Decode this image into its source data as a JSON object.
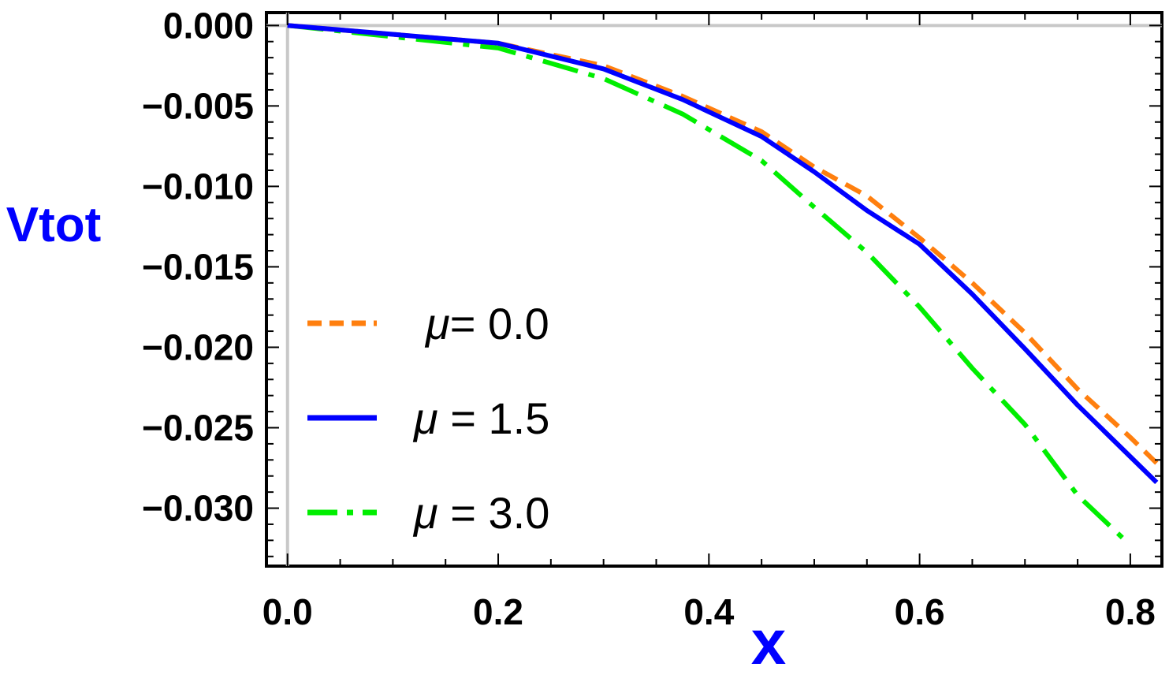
{
  "chart_data": {
    "type": "line",
    "title": "",
    "xlabel": "x",
    "ylabel": "Vtot",
    "xlim": [
      -0.02,
      0.83
    ],
    "ylim": [
      -0.0336,
      0.0008
    ],
    "grid": false,
    "legend_position": "bottom-left",
    "x_ticks": [
      {
        "value": 0.0,
        "label": "0.0"
      },
      {
        "value": 0.2,
        "label": "0.2"
      },
      {
        "value": 0.4,
        "label": "0.4"
      },
      {
        "value": 0.6,
        "label": "0.6"
      },
      {
        "value": 0.8,
        "label": "0.8"
      }
    ],
    "y_ticks": [
      {
        "value": 0.0,
        "label": "0.000"
      },
      {
        "value": -0.005,
        "label": "−0.005"
      },
      {
        "value": -0.01,
        "label": "−0.010"
      },
      {
        "value": -0.015,
        "label": "−0.015"
      },
      {
        "value": -0.02,
        "label": "−0.020"
      },
      {
        "value": -0.025,
        "label": "−0.025"
      },
      {
        "value": -0.03,
        "label": "−0.030"
      }
    ],
    "series": [
      {
        "name": "μ= 0.0",
        "legend_prefix": "μ",
        "legend_suffix": "= 0.0",
        "color": "#ff7f0e",
        "style": "dashed",
        "x": [
          0.0,
          0.2,
          0.3,
          0.375,
          0.45,
          0.5,
          0.55,
          0.6,
          0.65,
          0.7,
          0.75,
          0.8,
          0.825
        ],
        "y": [
          0.0,
          -0.0011,
          -0.0025,
          -0.0044,
          -0.0066,
          -0.0088,
          -0.0106,
          -0.0132,
          -0.016,
          -0.0191,
          -0.0226,
          -0.0256,
          -0.0272
        ]
      },
      {
        "name": "μ = 1.5",
        "legend_prefix": "μ",
        "legend_suffix": " = 1.5",
        "color": "#0000ff",
        "style": "solid",
        "x": [
          0.0,
          0.2,
          0.3,
          0.375,
          0.45,
          0.5,
          0.55,
          0.6,
          0.65,
          0.7,
          0.75,
          0.8,
          0.825
        ],
        "y": [
          0.0,
          -0.0011,
          -0.0027,
          -0.0046,
          -0.0069,
          -0.0091,
          -0.0115,
          -0.0136,
          -0.0167,
          -0.0201,
          -0.0236,
          -0.0268,
          -0.0284
        ]
      },
      {
        "name": "μ = 3.0",
        "legend_prefix": "μ",
        "legend_suffix": " = 3.0",
        "color": "#00ee00",
        "style": "dashdot",
        "x": [
          0.0,
          0.2,
          0.3,
          0.375,
          0.45,
          0.5,
          0.55,
          0.6,
          0.65,
          0.7,
          0.75,
          0.8
        ],
        "y": [
          0.0,
          -0.0014,
          -0.0033,
          -0.0055,
          -0.0084,
          -0.0113,
          -0.0141,
          -0.0175,
          -0.0213,
          -0.0248,
          -0.0292,
          -0.0323
        ]
      }
    ]
  }
}
